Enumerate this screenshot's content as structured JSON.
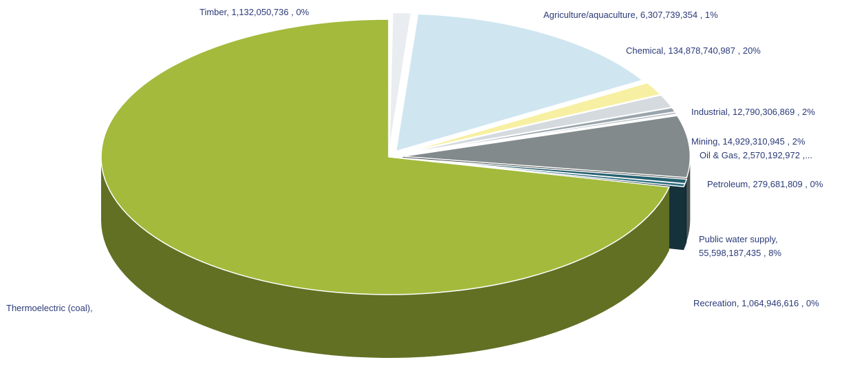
{
  "chart_data": {
    "type": "pie",
    "style": "3d-exploded",
    "title": "",
    "slices": [
      {
        "label": "Agriculture/aquaculture",
        "value": 6307739354,
        "percent_label": "1%",
        "display": "Agriculture/aquaculture,  6,307,739,354 , 1%",
        "color": "#e9edf1"
      },
      {
        "label": "Chemical",
        "value": 134878740987,
        "percent_label": "20%",
        "display": "Chemical,  134,878,740,987 , 20%",
        "color": "#cfe6f1"
      },
      {
        "label": "Industrial",
        "value": 12790306869,
        "percent_label": "2%",
        "display": "Industrial,  12,790,306,869 , 2%",
        "color": "#f7f0a2"
      },
      {
        "label": "Mining",
        "value": 14929310945,
        "percent_label": "2%",
        "display": "Mining,  14,929,310,945 , 2%",
        "color": "#d4dade"
      },
      {
        "label": "Oil & Gas",
        "value": 2570192972,
        "percent_label": "",
        "display": "Oil & Gas,  2,570,192,972 ,...",
        "color": "#9aa5ac"
      },
      {
        "label": "Petroleum",
        "value": 279681809,
        "percent_label": "0%",
        "display": "Petroleum,  279,681,809 , 0%",
        "color": "#b4bcc2"
      },
      {
        "label": "Public water supply",
        "value": 55598187435,
        "percent_label": "8%",
        "display_lines": [
          "Public water supply,",
          "55,598,187,435 , 8%"
        ],
        "color": "#828a8c"
      },
      {
        "label": "Recreation",
        "value": 1064946616,
        "percent_label": "0%",
        "display": "Recreation,  1,064,946,616 , 0%",
        "color": "#24606f"
      },
      {
        "label": "Thermoelectric (coal)",
        "value": null,
        "percent_label": "",
        "display": "Thermoelectric (coal),",
        "color": "#a3ba3c"
      },
      {
        "label": "Timber",
        "value": 1132050736,
        "percent_label": "0%",
        "display": "Timber,  1,132,050,736 , 0%",
        "color": "#2f6f80"
      }
    ],
    "legend": "none"
  }
}
